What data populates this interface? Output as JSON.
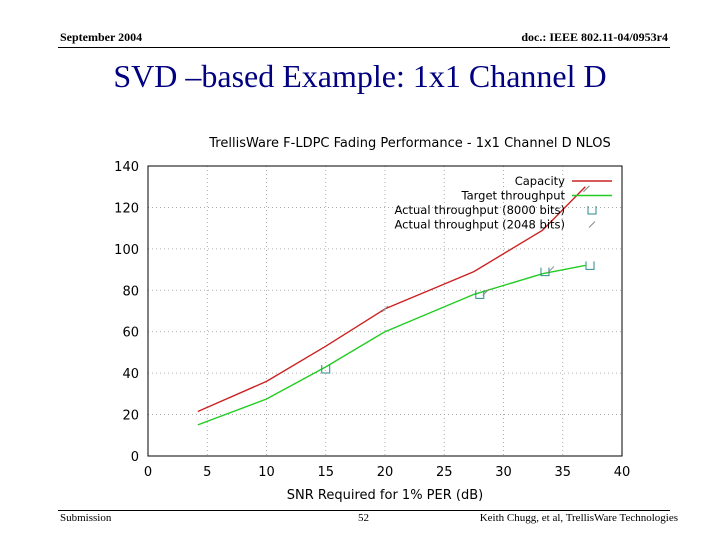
{
  "header": {
    "date": "September 2004",
    "doc_id": "doc.: IEEE 802.11-04/0953r4"
  },
  "slide": {
    "title": "SVD –based Example: 1x1 Channel D"
  },
  "footer": {
    "left": "Submission",
    "page": "52",
    "right": "Keith Chugg, et al, TrellisWare Technologies"
  },
  "chart_data": {
    "type": "line",
    "title": "TrellisWare F-LDPC Fading Performance - 1x1 Channel D NLOS",
    "xlabel": "SNR Required for 1% PER (dB)",
    "ylabel": "",
    "xlim": [
      0,
      40
    ],
    "ylim": [
      0,
      140
    ],
    "xticks": [
      0,
      5,
      10,
      15,
      20,
      25,
      30,
      35,
      40
    ],
    "yticks": [
      0,
      20,
      40,
      60,
      80,
      100,
      120,
      140
    ],
    "grid": true,
    "legend_position": "top-right",
    "series": [
      {
        "name": "Capacity",
        "style": "line",
        "color": "#cc2222",
        "x": [
          4.2,
          10,
          15,
          20,
          27.5,
          33.3,
          36.9
        ],
        "y": [
          21.5,
          36,
          53,
          71,
          89,
          109,
          130
        ]
      },
      {
        "name": "Target throughput",
        "style": "line",
        "color": "#22cc22",
        "x": [
          4.2,
          10,
          15,
          20,
          27.5,
          33.3,
          36.9
        ],
        "y": [
          15,
          27.5,
          43,
          60,
          78,
          88,
          92
        ]
      },
      {
        "name": "Actual throughput (8000 bits)",
        "style": "points",
        "color": "#2a8a8a",
        "x": [
          15,
          28,
          33.5,
          37.3
        ],
        "y": [
          42,
          78,
          89,
          92
        ]
      },
      {
        "name": "Actual throughput (2048 bits)",
        "style": "points",
        "color": "#888888",
        "x": [
          20,
          28.5,
          34,
          37
        ],
        "y": [
          71,
          79,
          90,
          129
        ]
      }
    ]
  }
}
